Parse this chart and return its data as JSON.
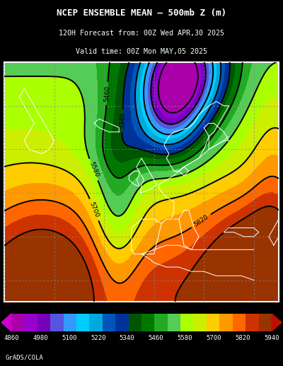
{
  "title_line1": "NCEP ENSEMBLE MEAN – 500mb Z (m)",
  "title_line2": "120H Forecast from: 00Z Wed APR,30 2025",
  "title_line3": "Valid time: 00Z Mon MAY,05 2025",
  "colorbar_labels": [
    "4860",
    "4980",
    "5100",
    "5220",
    "5340",
    "5460",
    "5580",
    "5700",
    "5820",
    "5940"
  ],
  "footer_text": "GrADS/COLA",
  "filled_levels": [
    4800,
    4860,
    4920,
    4980,
    5040,
    5100,
    5160,
    5220,
    5280,
    5340,
    5400,
    5460,
    5520,
    5580,
    5640,
    5700,
    5760,
    5820,
    5880,
    5940,
    6000
  ],
  "filled_colors": [
    "#AA00AA",
    "#9900CC",
    "#7700BB",
    "#5555DD",
    "#3399FF",
    "#00CCFF",
    "#00AADD",
    "#0055BB",
    "#003399",
    "#005500",
    "#007700",
    "#22AA22",
    "#55CC55",
    "#AAFF00",
    "#CCEE00",
    "#FFCC00",
    "#FF9900",
    "#FF6600",
    "#CC3300",
    "#993300"
  ],
  "cbar_colors": [
    "#AA00AA",
    "#9900CC",
    "#7700BB",
    "#5555DD",
    "#3399FF",
    "#00CCFF",
    "#00AADD",
    "#0055BB",
    "#003399",
    "#005500",
    "#007700",
    "#22AA22",
    "#55CC55",
    "#AAFF00",
    "#CCEE00",
    "#FFCC00",
    "#FF9900",
    "#FF6600",
    "#CC3300",
    "#993300"
  ],
  "contour_levels_black": [
    4860,
    4980,
    5100,
    5220,
    5340,
    5460,
    5580,
    5700,
    5820,
    5940
  ],
  "contour_label_levels": [
    5340,
    5460,
    5580,
    5700,
    5820
  ],
  "figsize": [
    4.0,
    5.18
  ],
  "dpi": 100
}
